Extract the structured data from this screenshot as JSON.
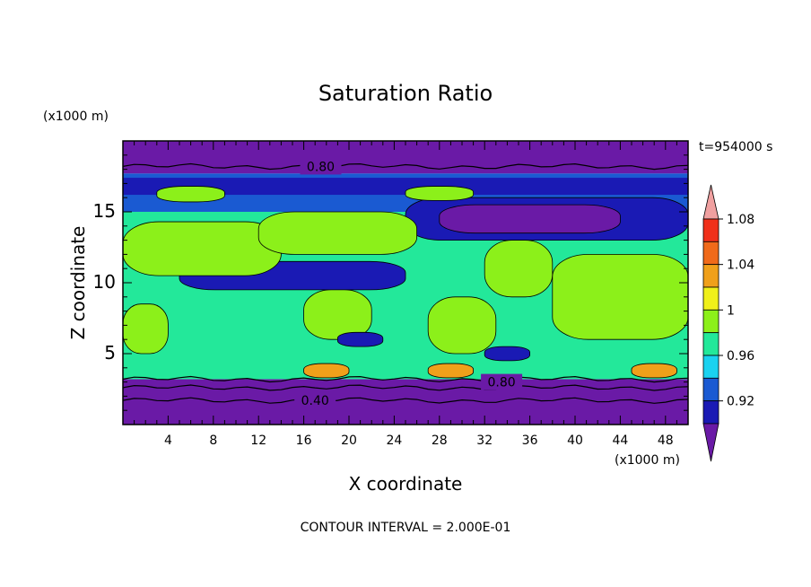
{
  "chart_data": {
    "type": "heatmap",
    "title": "Saturation Ratio",
    "xlabel": "X coordinate",
    "ylabel": "Z coordinate",
    "x_unit": "(x1000 m)",
    "y_unit": "(x1000 m)",
    "time_label": "t=954000 s",
    "footer": "CONTOUR INTERVAL = 2.000E-01",
    "xlim": [
      0,
      50
    ],
    "ylim": [
      0,
      20
    ],
    "x_ticks": [
      4,
      8,
      12,
      16,
      20,
      24,
      28,
      32,
      36,
      40,
      44,
      48
    ],
    "y_ticks": [
      5,
      10,
      15
    ],
    "contour_labels": [
      {
        "text": "0.80",
        "x": 17.5,
        "z": 18.2
      },
      {
        "text": "0.80",
        "x": 33.5,
        "z": 3.0
      },
      {
        "text": "0.40",
        "x": 17.0,
        "z": 1.7
      }
    ],
    "colorbar": {
      "levels": [
        0.92,
        0.94,
        0.96,
        0.98,
        1.0,
        1.02,
        1.04,
        1.06,
        1.08,
        1.1
      ],
      "tick_labels": [
        "0.92",
        "0.96",
        "1",
        "1.04",
        "1.08"
      ],
      "colors": [
        "#6a1aa6",
        "#1a1ab4",
        "#1a5ad2",
        "#1ad2f0",
        "#23e89a",
        "#8cf01a",
        "#f0f01a",
        "#f0a01a",
        "#f06a1a",
        "#f0301a",
        "#f0a0a0"
      ]
    },
    "regions": [
      {
        "x": [
          0,
          50
        ],
        "z": [
          0,
          3.2
        ],
        "level": 0
      },
      {
        "x": [
          0,
          50
        ],
        "z": [
          17.7,
          20
        ],
        "level": 0
      },
      {
        "x": [
          0,
          50
        ],
        "z": [
          15.0,
          17.7
        ],
        "level": 2
      },
      {
        "x": [
          0,
          50
        ],
        "z": [
          3.2,
          15.0
        ],
        "level": 4
      },
      {
        "x": [
          0,
          50
        ],
        "z": [
          16.2,
          17.4
        ],
        "level": 1
      },
      {
        "x": [
          25,
          50
        ],
        "z": [
          13.0,
          16.0
        ],
        "level": 1
      },
      {
        "x": [
          28,
          44
        ],
        "z": [
          13.5,
          15.5
        ],
        "level": 0
      },
      {
        "x": [
          5,
          25
        ],
        "z": [
          9.5,
          11.5
        ],
        "level": 1
      },
      {
        "x": [
          0,
          14
        ],
        "z": [
          10.5,
          14.3
        ],
        "level": 5
      },
      {
        "x": [
          12,
          26
        ],
        "z": [
          12.0,
          15.0
        ],
        "level": 5
      },
      {
        "x": [
          3,
          9
        ],
        "z": [
          15.7,
          16.8
        ],
        "level": 5
      },
      {
        "x": [
          25,
          31
        ],
        "z": [
          15.8,
          16.8
        ],
        "level": 5
      },
      {
        "x": [
          32,
          38
        ],
        "z": [
          9.0,
          13.0
        ],
        "level": 5
      },
      {
        "x": [
          38,
          50
        ],
        "z": [
          6.0,
          12.0
        ],
        "level": 5
      },
      {
        "x": [
          16,
          22
        ],
        "z": [
          6.0,
          9.5
        ],
        "level": 5
      },
      {
        "x": [
          0,
          4
        ],
        "z": [
          5.0,
          8.5
        ],
        "level": 5
      },
      {
        "x": [
          27,
          33
        ],
        "z": [
          5.0,
          9.0
        ],
        "level": 5
      },
      {
        "x": [
          16,
          20
        ],
        "z": [
          3.3,
          4.3
        ],
        "level": 7
      },
      {
        "x": [
          27,
          31
        ],
        "z": [
          3.3,
          4.3
        ],
        "level": 7
      },
      {
        "x": [
          45,
          49
        ],
        "z": [
          3.3,
          4.3
        ],
        "level": 7
      },
      {
        "x": [
          19,
          23
        ],
        "z": [
          5.5,
          6.5
        ],
        "level": 1
      },
      {
        "x": [
          32,
          36
        ],
        "z": [
          4.5,
          5.5
        ],
        "level": 1
      }
    ]
  }
}
